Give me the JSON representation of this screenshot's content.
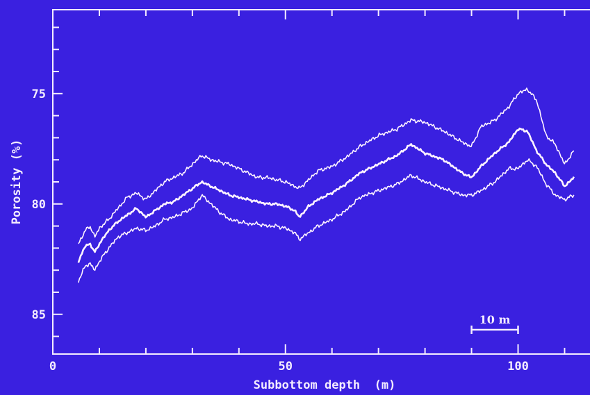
{
  "chart_data": {
    "type": "line",
    "title": "",
    "xlabel": "Subbottom depth  (m)",
    "ylabel": "Porosity (%)",
    "xlim": [
      0,
      118
    ],
    "ylim": [
      71.2,
      86.8
    ],
    "y_inverted": true,
    "x_ticks": [
      0,
      50,
      100
    ],
    "y_ticks": [
      75,
      80,
      85
    ],
    "x_tick_labels": [
      "0",
      "50",
      "100"
    ],
    "y_tick_labels": [
      "75",
      "80",
      "85"
    ],
    "scale_bar_label": "10 m",
    "scale_bar_length": 10,
    "grid": false,
    "legend": "none",
    "colors": {
      "background": "#3a20e0",
      "axes": "#f4ecff",
      "lines": "#fff3ff"
    },
    "series": [
      {
        "x": [
          5.5,
          7,
          8,
          9,
          10,
          12,
          14,
          16,
          18,
          20,
          22,
          24,
          26,
          28,
          30,
          32,
          34,
          36,
          38,
          40,
          42,
          44,
          46,
          48,
          50,
          52,
          53,
          55,
          57,
          60,
          63,
          66,
          70,
          74,
          77,
          80,
          84,
          88,
          90,
          92,
          95,
          98,
          100,
          102,
          104,
          106,
          108,
          110,
          112
        ],
        "values": [
          81.8,
          81.2,
          81.0,
          81.5,
          81.1,
          80.7,
          80.2,
          79.7,
          79.5,
          79.8,
          79.4,
          79.0,
          78.8,
          78.6,
          78.2,
          77.8,
          78.0,
          78.1,
          78.2,
          78.4,
          78.6,
          78.8,
          78.8,
          78.9,
          79.0,
          79.2,
          79.3,
          78.9,
          78.5,
          78.3,
          77.9,
          77.4,
          76.9,
          76.6,
          76.2,
          76.3,
          76.7,
          77.2,
          77.4,
          76.5,
          76.2,
          75.6,
          75.0,
          74.8,
          75.3,
          76.9,
          77.3,
          78.2,
          77.6
        ]
      },
      {
        "x": [
          5.5,
          7,
          8,
          9,
          10,
          12,
          14,
          16,
          18,
          20,
          22,
          24,
          26,
          28,
          30,
          32,
          34,
          36,
          38,
          40,
          42,
          44,
          46,
          48,
          50,
          52,
          53,
          55,
          57,
          60,
          63,
          66,
          70,
          74,
          77,
          80,
          84,
          88,
          90,
          92,
          95,
          98,
          100,
          102,
          104,
          106,
          108,
          110,
          112
        ],
        "values": [
          82.6,
          81.9,
          81.8,
          82.2,
          81.8,
          81.2,
          80.8,
          80.5,
          80.2,
          80.6,
          80.3,
          80.0,
          79.9,
          79.6,
          79.3,
          79.0,
          79.2,
          79.4,
          79.6,
          79.7,
          79.8,
          79.9,
          80.0,
          80.0,
          80.1,
          80.3,
          80.6,
          80.1,
          79.8,
          79.5,
          79.1,
          78.6,
          78.2,
          77.8,
          77.3,
          77.7,
          78.0,
          78.6,
          78.8,
          78.3,
          77.7,
          77.2,
          76.6,
          76.7,
          77.6,
          78.2,
          78.6,
          79.2,
          78.8
        ]
      },
      {
        "x": [
          5.5,
          7,
          8,
          9,
          10,
          12,
          14,
          16,
          18,
          20,
          22,
          24,
          26,
          28,
          30,
          32,
          34,
          36,
          38,
          40,
          42,
          44,
          46,
          48,
          50,
          52,
          53,
          55,
          57,
          60,
          63,
          66,
          70,
          74,
          77,
          80,
          84,
          88,
          90,
          92,
          95,
          98,
          100,
          102,
          104,
          106,
          108,
          110,
          112
        ],
        "values": [
          83.5,
          82.8,
          82.7,
          83.0,
          82.6,
          82.0,
          81.5,
          81.3,
          81.1,
          81.2,
          81.0,
          80.7,
          80.6,
          80.4,
          80.2,
          79.6,
          80.0,
          80.4,
          80.7,
          80.8,
          80.9,
          80.9,
          81.0,
          81.0,
          81.1,
          81.3,
          81.6,
          81.3,
          81.0,
          80.7,
          80.3,
          79.7,
          79.4,
          79.1,
          78.7,
          79.0,
          79.3,
          79.6,
          79.6,
          79.4,
          79.0,
          78.4,
          78.4,
          78.0,
          78.3,
          79.1,
          79.6,
          79.8,
          79.6
        ]
      }
    ]
  }
}
